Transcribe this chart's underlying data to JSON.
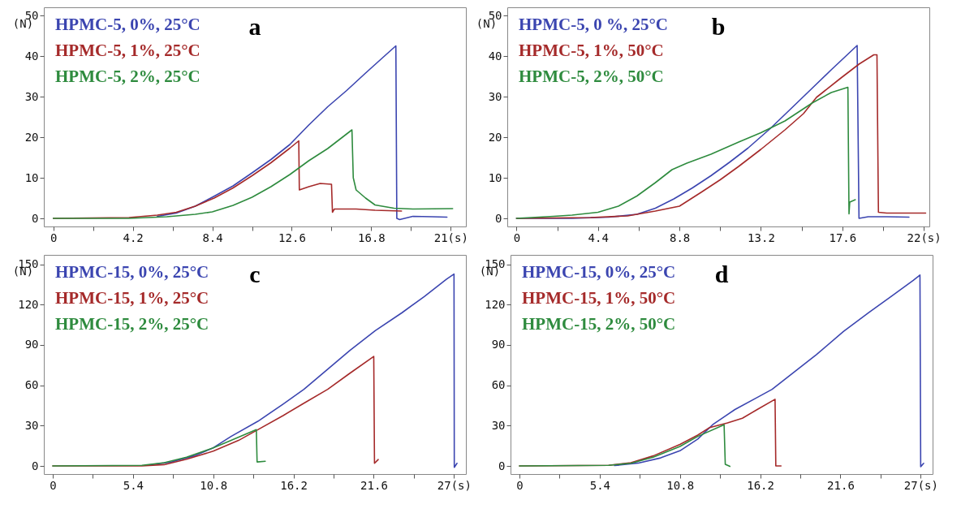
{
  "chart_data": [
    {
      "type": "line",
      "title": "a",
      "ylabel": "(N)",
      "legend": "top left",
      "line_style": "solid",
      "marker": "none",
      "grid": false,
      "xlim": [
        -0.5,
        21.8
      ],
      "ylim": [
        -2,
        52
      ],
      "xticks": [
        0,
        {
          "value": 2.1,
          "label": null
        },
        4.2,
        {
          "value": 6.3,
          "label": null
        },
        8.4,
        {
          "value": 10.5,
          "label": null
        },
        12.6,
        {
          "value": 14.7,
          "label": null
        },
        16.8,
        {
          "value": 18.9,
          "label": null
        },
        {
          "value": 21,
          "label": "21(s)"
        }
      ],
      "yticks": [
        0,
        10,
        20,
        30,
        40,
        50
      ],
      "series": [
        {
          "name": "HPMC-5, 0%, 25°C",
          "color": "#3b45b0",
          "x": [
            5.5,
            6.5,
            7.5,
            8.4,
            9.5,
            10.5,
            11.5,
            12.5,
            13.5,
            14.5,
            15.5,
            16.5,
            17.5,
            18.1,
            18.15,
            18.3,
            19,
            20,
            20.8
          ],
          "values": [
            0.5,
            1.3,
            3,
            5.2,
            8,
            11.2,
            14.5,
            18.2,
            23,
            27.5,
            31.5,
            35.8,
            40,
            42.5,
            0,
            -0.3,
            0.5,
            0.4,
            0.3
          ]
        },
        {
          "name": "HPMC-5, 1%, 25°C",
          "color": "#a52a2a",
          "x": [
            0,
            4,
            5.5,
            6.5,
            7.5,
            8.5,
            9.5,
            10.5,
            11.5,
            12.5,
            12.97,
            13,
            13.5,
            14.1,
            14.7,
            14.75,
            14.85,
            16,
            17,
            18.4
          ],
          "values": [
            0,
            0.2,
            0.8,
            1.5,
            3,
            5,
            7.5,
            10.5,
            13.7,
            17.3,
            19.1,
            7,
            7.8,
            8.6,
            8.4,
            1.5,
            2.3,
            2.3,
            2,
            1.8
          ]
        },
        {
          "name": "HPMC-5, 2%, 25°C",
          "color": "#2e8b3e",
          "x": [
            0,
            4,
            6,
            7.5,
            8.4,
            9.5,
            10.5,
            11.5,
            12.5,
            13.5,
            14.5,
            15.78,
            15.85,
            16,
            16.5,
            17,
            18,
            19,
            21.1
          ],
          "values": [
            0,
            0,
            0.4,
            1,
            1.6,
            3.2,
            5.2,
            7.8,
            10.8,
            14.2,
            17.2,
            21.8,
            10,
            7,
            5,
            3.3,
            2.5,
            2.3,
            2.4
          ]
        }
      ]
    },
    {
      "type": "line",
      "title": "b",
      "ylabel": "(N)",
      "legend": "top left",
      "line_style": "solid",
      "marker": "none",
      "grid": false,
      "xlim": [
        -0.5,
        22.3
      ],
      "ylim": [
        -2,
        52
      ],
      "xticks": [
        0,
        {
          "value": 2.2,
          "label": null
        },
        4.4,
        {
          "value": 6.6,
          "label": null
        },
        8.8,
        {
          "value": 11,
          "label": null
        },
        13.2,
        {
          "value": 15.4,
          "label": null
        },
        17.6,
        {
          "value": 19.8,
          "label": null
        },
        {
          "value": 22,
          "label": "22(s)"
        }
      ],
      "yticks": [
        0,
        10,
        20,
        30,
        40,
        50
      ],
      "series": [
        {
          "name": "HPMC-5, 0 %, 25°C",
          "color": "#3b45b0",
          "x": [
            0,
            3,
            5,
            6.5,
            7.5,
            8.5,
            9.5,
            10.5,
            11.5,
            12.5,
            13.7,
            15,
            16,
            17,
            18.4,
            18.5,
            19,
            20,
            21.2
          ],
          "values": [
            0,
            0,
            0.3,
            1,
            2.5,
            4.8,
            7.5,
            10.5,
            13.8,
            17.3,
            22.1,
            27.8,
            32.2,
            36.6,
            42.6,
            0,
            0.4,
            0.4,
            0.3
          ]
        },
        {
          "name": "HPMC-5, 1%, 50°C",
          "color": "#a52a2a",
          "x": [
            0,
            4,
            6,
            7.5,
            8.8,
            10,
            11,
            12,
            13.2,
            14.5,
            15.5,
            16.2,
            17.5,
            18.5,
            19.3,
            19.47,
            19.55,
            20,
            22.1
          ],
          "values": [
            0,
            0.2,
            0.6,
            1.8,
            3,
            6.5,
            9.5,
            12.8,
            17,
            21.8,
            25.8,
            29.8,
            34.5,
            38,
            40.3,
            40.3,
            1.5,
            1.3,
            1.3
          ]
        },
        {
          "name": "HPMC-5, 2%, 50°C",
          "color": "#2e8b3e",
          "x": [
            0,
            2,
            3,
            4.4,
            5.5,
            6.5,
            7.5,
            8.4,
            9.2,
            10.5,
            12,
            13.2,
            14.5,
            16,
            17,
            17.9,
            17.96,
            18,
            18.3
          ],
          "values": [
            0,
            0.5,
            0.8,
            1.5,
            3,
            5.5,
            8.8,
            12,
            13.6,
            15.8,
            18.8,
            21.1,
            24,
            28.5,
            31,
            32.3,
            1.1,
            4,
            4.6
          ]
        }
      ]
    },
    {
      "type": "line",
      "title": "c",
      "ylabel": "(N)",
      "legend": "top left",
      "line_style": "solid",
      "marker": "none",
      "grid": false,
      "xlim": [
        -0.6,
        27.8
      ],
      "ylim": [
        -6,
        157
      ],
      "xticks": [
        0,
        {
          "value": 2.7,
          "label": null
        },
        5.4,
        {
          "value": 8.1,
          "label": null
        },
        10.8,
        {
          "value": 13.5,
          "label": null
        },
        16.2,
        {
          "value": 18.9,
          "label": null
        },
        21.6,
        {
          "value": 24.3,
          "label": null
        },
        {
          "value": 27,
          "label": "27(s)"
        }
      ],
      "yticks": [
        0,
        30,
        60,
        90,
        120,
        150
      ],
      "series": [
        {
          "name": "HPMC-15, 0%, 25°C",
          "color": "#3b45b0",
          "x": [
            6.5,
            8,
            9.5,
            10.8,
            12,
            13.8,
            15.5,
            16.9,
            18.5,
            20,
            21.7,
            23.5,
            25,
            26.5,
            27,
            27.02,
            27.2
          ],
          "values": [
            0.8,
            3,
            7.5,
            13.5,
            22,
            33.2,
            46,
            57,
            72,
            86,
            100.6,
            114,
            126,
            139,
            142.7,
            -1,
            2
          ]
        },
        {
          "name": "HPMC-15, 1%, 25°C",
          "color": "#a52a2a",
          "x": [
            0,
            6,
            7.5,
            9,
            10.8,
            12.5,
            13.8,
            15.5,
            16.9,
            18.5,
            20,
            21.6,
            21.65,
            21.9
          ],
          "values": [
            0,
            0,
            1,
            5,
            11,
            19,
            27,
            37.5,
            46.7,
            57,
            69,
            81.5,
            2,
            4.8
          ]
        },
        {
          "name": "HPMC-15, 2%, 25°C",
          "color": "#2e8b3e",
          "x": [
            0,
            6,
            7.5,
            9,
            10.8,
            12,
            13.7,
            13.75,
            14.3
          ],
          "values": [
            0,
            0.5,
            2.5,
            6.5,
            13.5,
            19,
            27,
            3,
            3.5
          ]
        }
      ]
    },
    {
      "type": "line",
      "title": "d",
      "ylabel": "(N)",
      "legend": "top left",
      "line_style": "solid",
      "marker": "none",
      "grid": false,
      "xlim": [
        -0.6,
        27.8
      ],
      "ylim": [
        -6,
        157
      ],
      "xticks": [
        0,
        {
          "value": 2.7,
          "label": null
        },
        5.4,
        {
          "value": 8.1,
          "label": null
        },
        10.8,
        {
          "value": 13.5,
          "label": null
        },
        16.2,
        {
          "value": 18.9,
          "label": null
        },
        21.6,
        {
          "value": 24.3,
          "label": null
        },
        {
          "value": 27,
          "label": "27(s)"
        }
      ],
      "yticks": [
        0,
        30,
        60,
        90,
        120,
        150
      ],
      "series": [
        {
          "name": "HPMC-15, 0%, 25°C",
          "color": "#3b45b0",
          "x": [
            6.4,
            8,
            9.5,
            10.8,
            12,
            13,
            14.5,
            16,
            17,
            18.5,
            20,
            21.8,
            23.5,
            25,
            26.5,
            26.95,
            27,
            27.2
          ],
          "values": [
            0.3,
            2.2,
            6,
            11.3,
            20,
            30.7,
            42,
            51,
            57,
            70,
            83,
            100,
            114,
            126,
            138,
            142,
            -0.5,
            2
          ]
        },
        {
          "name": "HPMC-15, 1%, 50°C",
          "color": "#a52a2a",
          "x": [
            0,
            6,
            7.5,
            9,
            10.8,
            12,
            12.8,
            14,
            15,
            16,
            17.2,
            17.25,
            17.6
          ],
          "values": [
            0,
            0.5,
            2.5,
            7.5,
            16,
            23,
            28.6,
            32,
            35.5,
            42,
            49.6,
            0,
            0
          ]
        },
        {
          "name": "HPMC-15, 2%, 50°C",
          "color": "#2e8b3e",
          "x": [
            0,
            6,
            7.5,
            9,
            10.8,
            12,
            13.77,
            13.85,
            14.16
          ],
          "values": [
            0,
            0.5,
            2,
            6.5,
            14.5,
            22,
            30.7,
            1.3,
            -0.3
          ]
        }
      ]
    }
  ]
}
